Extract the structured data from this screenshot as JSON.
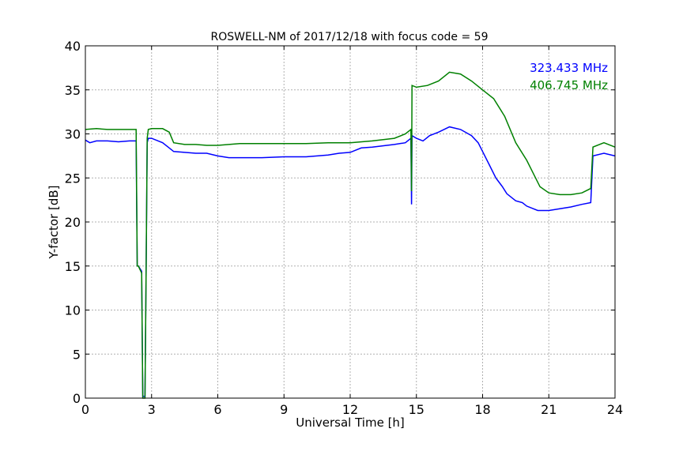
{
  "chart_data": {
    "type": "line",
    "title": "ROSWELL-NM of 2017/12/18 with focus code = 59",
    "xlabel": "Universal Time [h]",
    "ylabel": "Y-factor [dB]",
    "xlim": [
      0,
      24
    ],
    "ylim": [
      0,
      40
    ],
    "xticks": [
      0,
      3,
      6,
      9,
      12,
      15,
      18,
      21,
      24
    ],
    "yticks": [
      0,
      5,
      10,
      15,
      20,
      25,
      30,
      35,
      40
    ],
    "grid": true,
    "legend_position": "top-right",
    "series": [
      {
        "name": "323.433 MHz",
        "color": "#0000ff",
        "x": [
          0,
          0.2,
          0.5,
          1,
          1.5,
          2,
          2.3,
          2.35,
          2.4,
          2.55,
          2.6,
          2.7,
          2.75,
          2.8,
          2.85,
          3.0,
          3.5,
          3.8,
          4,
          4.5,
          5,
          5.5,
          6,
          6.5,
          7,
          8,
          9,
          10,
          11,
          11.5,
          12,
          12.5,
          13,
          14,
          14.5,
          14.75,
          14.78,
          14.8,
          15,
          15.3,
          15.6,
          16,
          16.5,
          17,
          17.5,
          17.8,
          18,
          18.3,
          18.6,
          18.9,
          19.1,
          19.5,
          19.8,
          20,
          20.5,
          21,
          21.5,
          22,
          22.5,
          22.9,
          23,
          23.5,
          24
        ],
        "y": [
          29.3,
          29.0,
          29.2,
          29.2,
          29.1,
          29.2,
          29.2,
          15.0,
          15.0,
          14.4,
          0.2,
          0.2,
          14.2,
          29.0,
          29.5,
          29.5,
          29.0,
          28.4,
          28.0,
          27.9,
          27.8,
          27.8,
          27.5,
          27.3,
          27.3,
          27.3,
          27.4,
          27.4,
          27.6,
          27.8,
          27.9,
          28.4,
          28.5,
          28.8,
          29.0,
          29.5,
          22.0,
          29.8,
          29.5,
          29.2,
          29.8,
          30.2,
          30.8,
          30.5,
          29.8,
          29.0,
          28.0,
          26.5,
          25.0,
          24.0,
          23.2,
          22.4,
          22.2,
          21.8,
          21.3,
          21.3,
          21.5,
          21.7,
          22.0,
          22.2,
          27.5,
          27.8,
          27.5
        ]
      },
      {
        "name": "406.745 MHz",
        "color": "#008000",
        "x": [
          0,
          0.5,
          1,
          1.5,
          2,
          2.3,
          2.35,
          2.4,
          2.55,
          2.6,
          2.7,
          2.75,
          2.8,
          2.85,
          3.0,
          3.5,
          3.8,
          4,
          4.5,
          5,
          5.5,
          6,
          7,
          8,
          9,
          10,
          11,
          12,
          13,
          14,
          14.5,
          14.75,
          14.78,
          14.8,
          15,
          15.5,
          16,
          16.5,
          17,
          17.5,
          18,
          18.5,
          19,
          19.5,
          20,
          20.3,
          20.6,
          21,
          21.5,
          22,
          22.5,
          22.9,
          23,
          23.5,
          24
        ],
        "y": [
          30.5,
          30.6,
          30.5,
          30.5,
          30.5,
          30.5,
          15.0,
          15.0,
          14.2,
          0.0,
          0.0,
          14.0,
          29.5,
          30.5,
          30.6,
          30.6,
          30.2,
          29.0,
          28.8,
          28.8,
          28.7,
          28.7,
          28.9,
          28.9,
          28.9,
          28.9,
          29.0,
          29.0,
          29.2,
          29.5,
          30.0,
          30.5,
          23.5,
          35.5,
          35.3,
          35.5,
          36.0,
          37.0,
          36.8,
          36.0,
          35.0,
          34.0,
          32.0,
          29.0,
          27.0,
          25.5,
          24.0,
          23.3,
          23.1,
          23.1,
          23.3,
          23.8,
          28.5,
          29.0,
          28.5
        ]
      }
    ]
  }
}
